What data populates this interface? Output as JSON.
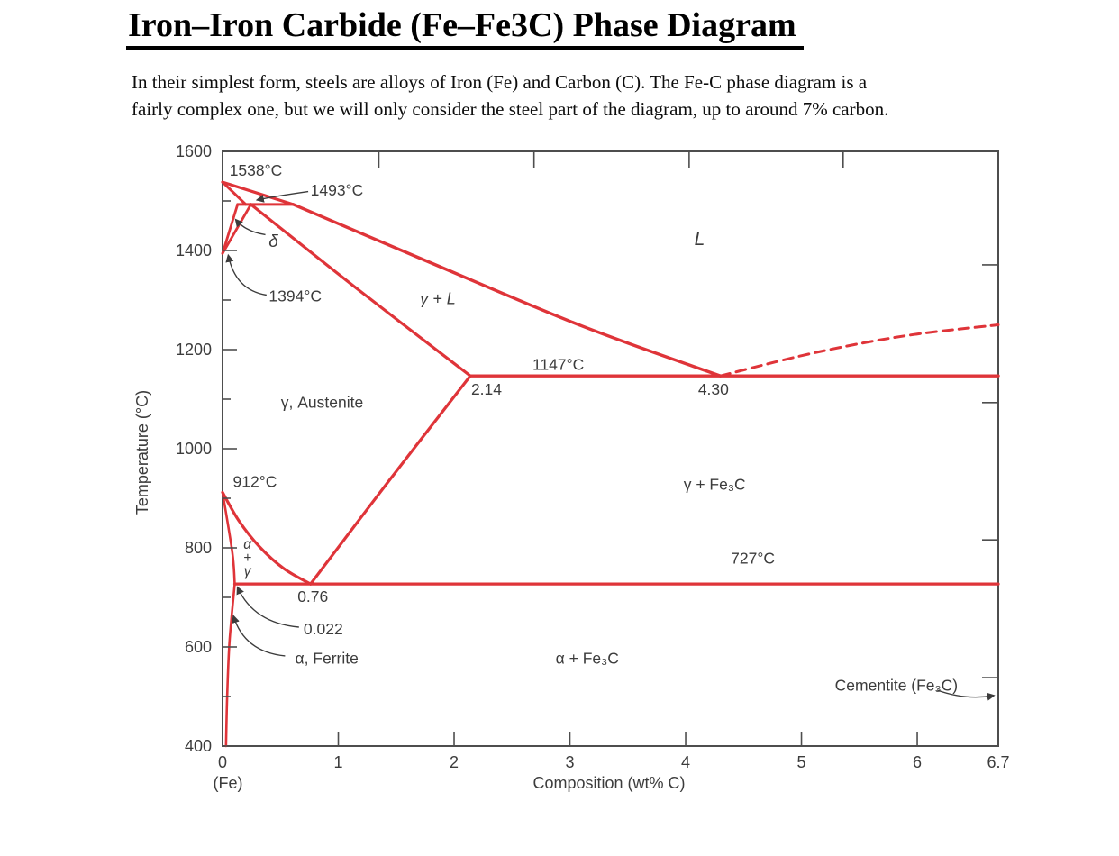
{
  "document": {
    "title": "Iron–Iron Carbide (Fe–Fe3C) Phase Diagram",
    "intro_line1": "In their simplest form, steels are alloys of Iron (Fe) and Carbon (C). The Fe-C phase diagram is a",
    "intro_line2": "fairly complex one, but we will only consider the steel part of the diagram, up to around 7% carbon."
  },
  "colors": {
    "phase_line": "#df3439",
    "axis": "#4e4e4e",
    "label_text": "#3c3c3c",
    "background": "#ffffff"
  },
  "chart_data": {
    "type": "line",
    "description": "Iron–Iron Carbide (Fe–Fe3C) equilibrium phase diagram",
    "xlabel": "Composition (wt% C)",
    "x_origin_label": "(Fe)",
    "ylabel": "Temperature (°C)",
    "xlim": [
      0,
      6.7
    ],
    "ylim": [
      400,
      1600
    ],
    "x_ticks": [
      {
        "value": 0,
        "label": "0",
        "tick": false
      },
      {
        "value": 1,
        "label": "1",
        "tick": true
      },
      {
        "value": 2,
        "label": "2",
        "tick": true
      },
      {
        "value": 3,
        "label": "3",
        "tick": true
      },
      {
        "value": 4,
        "label": "4",
        "tick": true
      },
      {
        "value": 5,
        "label": "5",
        "tick": true
      },
      {
        "value": 6,
        "label": "6",
        "tick": true
      },
      {
        "value": 6.7,
        "label": "6.7",
        "tick": false
      }
    ],
    "y_ticks_major": [
      400,
      600,
      800,
      1000,
      1200,
      1400,
      1600
    ],
    "y_ticks_minor": [
      500,
      700,
      900,
      1100,
      1300,
      1500
    ],
    "top_axis_ticks": [
      1.35,
      2.69,
      4.03,
      5.36
    ],
    "right_axis_ticks": [
      538,
      816,
      1093,
      1371
    ],
    "key_points": {
      "melting_point_fe_c": 1538,
      "peritectic_temp_c": 1493,
      "delta_to_gamma_temp_c": 1394,
      "gamma_to_alpha_temp_c": 912,
      "eutectic": {
        "wt_c": 4.3,
        "temp_c": 1147
      },
      "max_c_in_austenite": {
        "wt_c": 2.14,
        "temp_c": 1147
      },
      "eutectoid": {
        "wt_c": 0.76,
        "temp_c": 727
      },
      "max_c_in_ferrite": {
        "wt_c": 0.022,
        "temp_c": 727
      },
      "cementite_wt_c": 6.7
    },
    "boundaries": [
      {
        "name": "liquidus-delta-segment",
        "dashed": false,
        "width": 3.2,
        "points": [
          [
            0,
            1538
          ],
          [
            0.61,
            1493
          ]
        ]
      },
      {
        "name": "delta-solidus",
        "dashed": false,
        "width": 3.0,
        "points": [
          [
            0,
            1538
          ],
          [
            0.2,
            1493
          ]
        ]
      },
      {
        "name": "peritectic-line-1493",
        "dashed": false,
        "width": 3.0,
        "points": [
          [
            0.13,
            1493
          ],
          [
            0.61,
            1493
          ]
        ]
      },
      {
        "name": "delta-gamma-boundary-left",
        "dashed": false,
        "width": 2.8,
        "points": [
          [
            0.13,
            1493
          ],
          [
            0,
            1394
          ]
        ]
      },
      {
        "name": "delta-gamma-boundary-right",
        "dashed": false,
        "width": 2.8,
        "points": [
          [
            0.245,
            1493
          ],
          [
            0,
            1394
          ]
        ]
      },
      {
        "name": "gamma-solidus",
        "dashed": false,
        "width": 3.2,
        "points": [
          [
            0.245,
            1493
          ],
          [
            1.15,
            1325
          ],
          [
            2.14,
            1147
          ]
        ]
      },
      {
        "name": "liquidus",
        "dashed": false,
        "width": 3.4,
        "points": [
          [
            0.61,
            1493
          ],
          [
            1.8,
            1375
          ],
          [
            3.1,
            1248
          ],
          [
            4.3,
            1147
          ]
        ]
      },
      {
        "name": "eutectic-line-1147",
        "dashed": false,
        "width": 3.4,
        "points": [
          [
            2.14,
            1147
          ],
          [
            6.7,
            1147
          ]
        ]
      },
      {
        "name": "liquidus-extension-dashed",
        "dashed": true,
        "width": 3.0,
        "points": [
          [
            4.3,
            1147
          ],
          [
            5.1,
            1193
          ],
          [
            5.9,
            1228
          ],
          [
            6.7,
            1250
          ]
        ]
      },
      {
        "name": "acm-line",
        "dashed": false,
        "width": 3.2,
        "points": [
          [
            2.14,
            1147
          ],
          [
            1.42,
            930
          ],
          [
            0.76,
            727
          ]
        ]
      },
      {
        "name": "a3-line",
        "dashed": false,
        "width": 3.2,
        "points": [
          [
            0,
            912
          ],
          [
            0.14,
            855
          ],
          [
            0.32,
            802
          ],
          [
            0.53,
            758
          ],
          [
            0.76,
            727
          ]
        ]
      },
      {
        "name": "eutectoid-line-727",
        "dashed": false,
        "width": 3.2,
        "points": [
          [
            0.105,
            727
          ],
          [
            6.7,
            727
          ]
        ]
      },
      {
        "name": "alpha-solvus-upper",
        "dashed": false,
        "width": 2.6,
        "points": [
          [
            0,
            912
          ],
          [
            0.085,
            790
          ],
          [
            0.105,
            727
          ]
        ]
      },
      {
        "name": "alpha-solvus-lower",
        "dashed": false,
        "width": 2.6,
        "points": [
          [
            0.105,
            727
          ],
          [
            0.06,
            610
          ],
          [
            0.04,
            500
          ],
          [
            0.03,
            400
          ]
        ]
      }
    ],
    "point_labels": [
      {
        "name": "label-1538",
        "text": "1538°C",
        "x": 0.06,
        "y": 1562,
        "anchor": "start"
      },
      {
        "name": "label-1493",
        "text": "1493°C",
        "x": 0.76,
        "y": 1522,
        "anchor": "start"
      },
      {
        "name": "label-delta",
        "text": "δ",
        "x": 0.44,
        "y": 1418,
        "anchor": "middle",
        "italic": true,
        "size": 19
      },
      {
        "name": "label-1394",
        "text": "1394°C",
        "x": 0.4,
        "y": 1308,
        "anchor": "start"
      },
      {
        "name": "label-1147",
        "text": "1147°C",
        "x": 2.9,
        "y": 1170,
        "anchor": "middle"
      },
      {
        "name": "label-2-14",
        "text": "2.14",
        "x": 2.28,
        "y": 1120,
        "anchor": "middle"
      },
      {
        "name": "label-4-30",
        "text": "4.30",
        "x": 4.24,
        "y": 1120,
        "anchor": "middle"
      },
      {
        "name": "label-912",
        "text": "912°C",
        "x": 0.28,
        "y": 934,
        "anchor": "middle"
      },
      {
        "name": "label-727",
        "text": "727°C",
        "x": 4.58,
        "y": 779,
        "anchor": "middle"
      },
      {
        "name": "label-0-76",
        "text": "0.76",
        "x": 0.78,
        "y": 702,
        "anchor": "middle"
      },
      {
        "name": "label-0-022",
        "text": "0.022",
        "x": 0.87,
        "y": 636,
        "anchor": "middle"
      },
      {
        "name": "label-ferrite",
        "text": "α, Ferrite",
        "x": 0.9,
        "y": 577,
        "anchor": "middle"
      },
      {
        "name": "label-cementite",
        "text": "Cementite (Fe₃C)",
        "x": 5.82,
        "y": 523,
        "anchor": "middle"
      }
    ],
    "region_labels": [
      {
        "name": "region-liquid",
        "text": "L",
        "x": 4.12,
        "y": 1422,
        "italic": true,
        "serif": true,
        "size": 21
      },
      {
        "name": "region-gamma-plus-l",
        "text": "γ + L",
        "x": 1.86,
        "y": 1303,
        "italic": true,
        "size": 18
      },
      {
        "name": "region-austenite",
        "text": "γ, Austenite",
        "x": 0.86,
        "y": 1094,
        "size": 17.5
      },
      {
        "name": "region-gamma-fe3c",
        "text": "γ + Fe₃C",
        "x": 4.25,
        "y": 928,
        "size": 17.5
      },
      {
        "name": "region-alpha-fe3c",
        "text": "α + Fe₃C",
        "x": 3.15,
        "y": 577,
        "size": 17.5
      }
    ],
    "stacked_region_label": {
      "name": "region-alpha-plus-gamma",
      "lines": [
        "α",
        "+",
        "γ"
      ],
      "x": 0.215,
      "y": 782
    },
    "arrows": [
      {
        "name": "arrow-1493",
        "from": [
          0.74,
          1519
        ],
        "ctrl": [
          0.44,
          1509
        ],
        "to": [
          0.3,
          1502
        ]
      },
      {
        "name": "arrow-delta",
        "from": [
          0.37,
          1432
        ],
        "ctrl": [
          0.2,
          1438
        ],
        "to": [
          0.115,
          1462
        ]
      },
      {
        "name": "arrow-1394",
        "from": [
          0.38,
          1310
        ],
        "ctrl": [
          0.11,
          1320
        ],
        "to": [
          0.05,
          1390
        ]
      },
      {
        "name": "arrow-0-022",
        "from": [
          0.66,
          640
        ],
        "ctrl": [
          0.27,
          648
        ],
        "to": [
          0.13,
          720
        ]
      },
      {
        "name": "arrow-ferrite",
        "from": [
          0.54,
          582
        ],
        "ctrl": [
          0.19,
          590
        ],
        "to": [
          0.095,
          662
        ]
      },
      {
        "name": "arrow-cementite",
        "from": [
          6.17,
          513
        ],
        "ctrl": [
          6.42,
          492
        ],
        "to": [
          6.66,
          502
        ]
      }
    ]
  }
}
